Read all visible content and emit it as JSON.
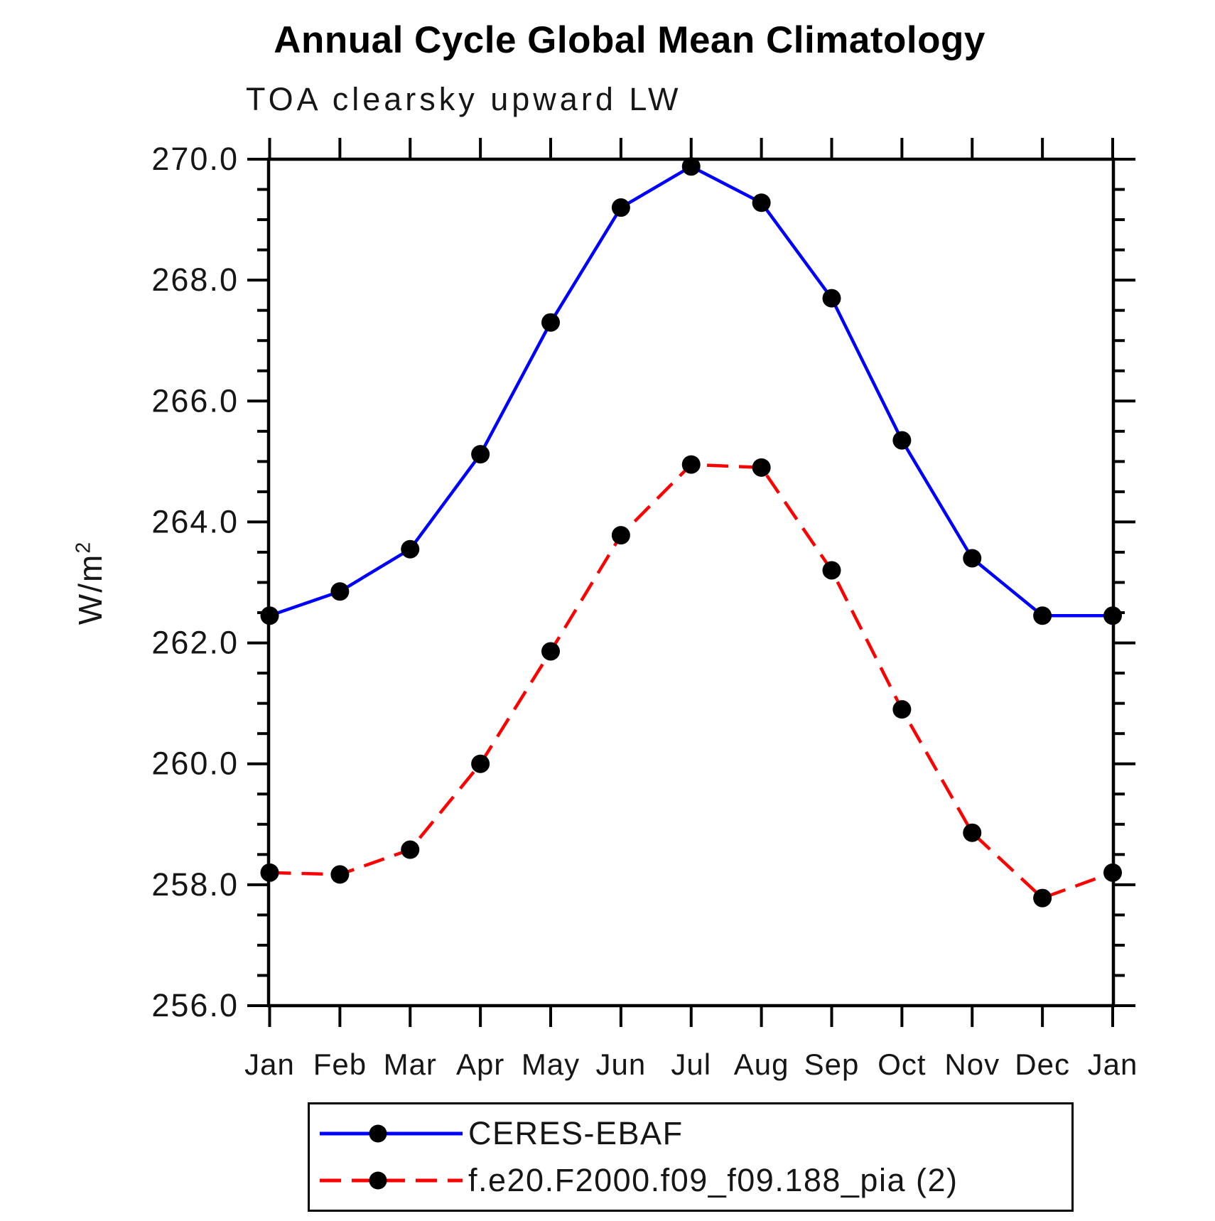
{
  "chart_data": {
    "type": "line",
    "title": "Annual Cycle Global Mean Climatology",
    "subtitle": "TOA clearsky upward LW",
    "ylabel": {
      "base": "W/m",
      "exponent": "2"
    },
    "x_categories": [
      "Jan",
      "Feb",
      "Mar",
      "Apr",
      "May",
      "Jun",
      "Jul",
      "Aug",
      "Sep",
      "Oct",
      "Nov",
      "Dec",
      "Jan"
    ],
    "y_axis": {
      "min": 256.0,
      "max": 270.0,
      "major_step": 2.0,
      "minor_step": 0.5,
      "decimals": 1
    },
    "grid": "off",
    "legend_position": "bottom-left",
    "series": [
      {
        "name": "CERES-EBAF",
        "color": "#0000ff",
        "line_style": "solid",
        "marker": "circle",
        "marker_color": "#000000",
        "values": [
          262.45,
          262.85,
          263.55,
          265.12,
          267.3,
          269.2,
          269.88,
          269.28,
          267.7,
          265.35,
          263.4,
          262.45,
          262.45
        ]
      },
      {
        "name": "f.e20.F2000.f09_f09.188_pia (2)",
        "color": "#ff0000",
        "line_style": "dashed",
        "marker": "circle",
        "marker_color": "#000000",
        "values": [
          258.2,
          258.17,
          258.58,
          260.0,
          261.86,
          263.78,
          264.95,
          264.9,
          263.2,
          260.9,
          258.86,
          257.78,
          258.2
        ]
      }
    ]
  }
}
